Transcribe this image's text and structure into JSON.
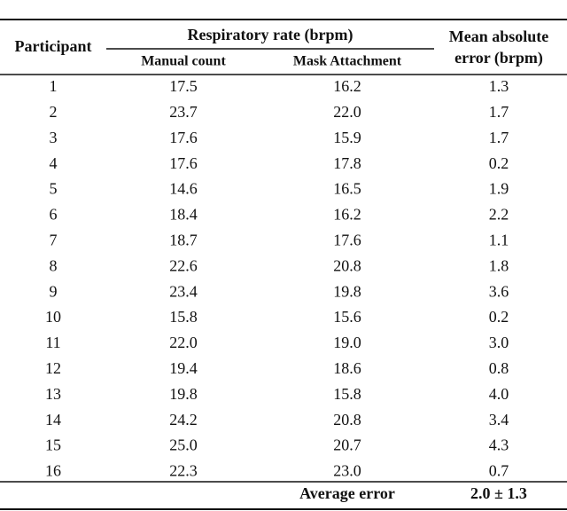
{
  "table": {
    "header": {
      "participant": "Participant",
      "group": "Respiratory rate (brpm)",
      "manual": "Manual count",
      "mask": "Mask Attachment",
      "mae_line1": "Mean absolute",
      "mae_line2": "error (brpm)"
    },
    "rows": [
      [
        "1",
        "17.5",
        "16.2",
        "1.3"
      ],
      [
        "2",
        "23.7",
        "22.0",
        "1.7"
      ],
      [
        "3",
        "17.6",
        "15.9",
        "1.7"
      ],
      [
        "4",
        "17.6",
        "17.8",
        "0.2"
      ],
      [
        "5",
        "14.6",
        "16.5",
        "1.9"
      ],
      [
        "6",
        "18.4",
        "16.2",
        "2.2"
      ],
      [
        "7",
        "18.7",
        "17.6",
        "1.1"
      ],
      [
        "8",
        "22.6",
        "20.8",
        "1.8"
      ],
      [
        "9",
        "23.4",
        "19.8",
        "3.6"
      ],
      [
        "10",
        "15.8",
        "15.6",
        "0.2"
      ],
      [
        "11",
        "22.0",
        "19.0",
        "3.0"
      ],
      [
        "12",
        "19.4",
        "18.6",
        "0.8"
      ],
      [
        "13",
        "19.8",
        "15.8",
        "4.0"
      ],
      [
        "14",
        "24.2",
        "20.8",
        "3.4"
      ],
      [
        "15",
        "25.0",
        "20.7",
        "4.3"
      ],
      [
        "16",
        "22.3",
        "23.0",
        "0.7"
      ]
    ],
    "footer": {
      "label": "Average error",
      "value": "2.0 ± 1.3"
    }
  }
}
